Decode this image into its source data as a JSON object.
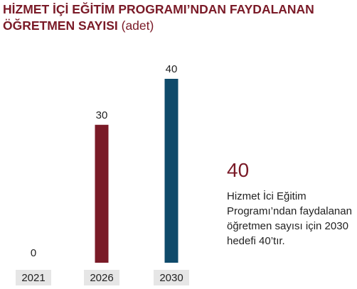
{
  "header": {
    "title": "HİZMET İÇİ EĞİTİM PROGRAMI’NDAN FAYDALANAN ÖĞRETMEN SAYISI",
    "unit": "(adet)"
  },
  "callout": {
    "value": "40",
    "text": "Hizmet İci Eğitim Programı’ndan faydalanan öğretmen sayısı için 2030 hedefi 40’tır."
  },
  "colors": {
    "title": "#7a1a27",
    "bar_2026": "#7a1a27",
    "bar_2030": "#0f4a6a",
    "category_label_bg": "#e6e6e6"
  },
  "chart_data": {
    "type": "bar",
    "categories": [
      "2021",
      "2026",
      "2030"
    ],
    "values": [
      0,
      30,
      40
    ],
    "value_labels": [
      "0",
      "30",
      "40"
    ],
    "bar_colors": [
      "#7a1a27",
      "#7a1a27",
      "#0f4a6a"
    ],
    "title": "HİZMET İÇİ EĞİTİM PROGRAMI’NDAN FAYDALANAN ÖĞRETMEN SAYISI",
    "unit": "(adet)",
    "xlabel": "",
    "ylabel": "",
    "ylim": [
      0,
      40
    ],
    "grid": false,
    "legend": "none"
  }
}
